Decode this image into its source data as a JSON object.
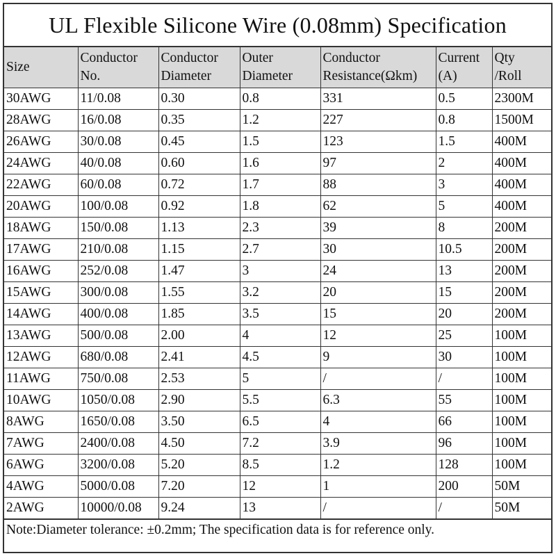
{
  "title": "UL Flexible Silicone Wire (0.08mm) Specification",
  "colors": {
    "header_bg": "#d9d9d9",
    "border": "#333333",
    "background": "#ffffff"
  },
  "headers": [
    {
      "line1": "Size",
      "line2": ""
    },
    {
      "line1": "Conductor",
      "line2": "No."
    },
    {
      "line1": "Conductor",
      "line2": "Diameter"
    },
    {
      "line1": "Outer",
      "line2": "Diameter"
    },
    {
      "line1": "Conductor",
      "line2": "Resistance(Ωkm)"
    },
    {
      "line1": "Current",
      "line2": "(A)"
    },
    {
      "line1": "Qty",
      "line2": "/Roll"
    }
  ],
  "rows": [
    [
      "30AWG",
      "11/0.08",
      "0.30",
      "0.8",
      "331",
      "0.5",
      "2300M"
    ],
    [
      "28AWG",
      "16/0.08",
      "0.35",
      "1.2",
      "227",
      "0.8",
      "1500M"
    ],
    [
      "26AWG",
      "30/0.08",
      "0.45",
      "1.5",
      "123",
      "1.5",
      "400M"
    ],
    [
      "24AWG",
      "40/0.08",
      "0.60",
      "1.6",
      "97",
      "2",
      "400M"
    ],
    [
      "22AWG",
      "60/0.08",
      "0.72",
      "1.7",
      "88",
      "3",
      "400M"
    ],
    [
      "20AWG",
      "100/0.08",
      "0.92",
      "1.8",
      "62",
      "5",
      "400M"
    ],
    [
      "18AWG",
      "150/0.08",
      "1.13",
      "2.3",
      "39",
      "8",
      "200M"
    ],
    [
      "17AWG",
      "210/0.08",
      "1.15",
      "2.7",
      "30",
      "10.5",
      "200M"
    ],
    [
      "16AWG",
      "252/0.08",
      "1.47",
      "3",
      "24",
      "13",
      "200M"
    ],
    [
      "15AWG",
      "300/0.08",
      "1.55",
      "3.2",
      "20",
      "15",
      "200M"
    ],
    [
      "14AWG",
      "400/0.08",
      "1.85",
      "3.5",
      "15",
      "20",
      "200M"
    ],
    [
      "13AWG",
      "500/0.08",
      "2.00",
      "4",
      "12",
      "25",
      "100M"
    ],
    [
      "12AWG",
      "680/0.08",
      "2.41",
      "4.5",
      "9",
      "30",
      "100M"
    ],
    [
      "11AWG",
      "750/0.08",
      "2.53",
      "5",
      "/",
      "/",
      "100M"
    ],
    [
      "10AWG",
      "1050/0.08",
      "2.90",
      "5.5",
      "6.3",
      "55",
      "100M"
    ],
    [
      "8AWG",
      "1650/0.08",
      "3.50",
      "6.5",
      "4",
      "66",
      "100M"
    ],
    [
      "7AWG",
      "2400/0.08",
      "4.50",
      "7.2",
      "3.9",
      "96",
      "100M"
    ],
    [
      "6AWG",
      "3200/0.08",
      "5.20",
      "8.5",
      "1.2",
      "128",
      "100M"
    ],
    [
      "4AWG",
      "5000/0.08",
      "7.20",
      "12",
      "1",
      "200",
      "50M"
    ],
    [
      "2AWG",
      "10000/0.08",
      "9.24",
      "13",
      "/",
      "/",
      "50M"
    ]
  ],
  "note": "Note:Diameter tolerance: ±0.2mm; The specification data is for reference only."
}
